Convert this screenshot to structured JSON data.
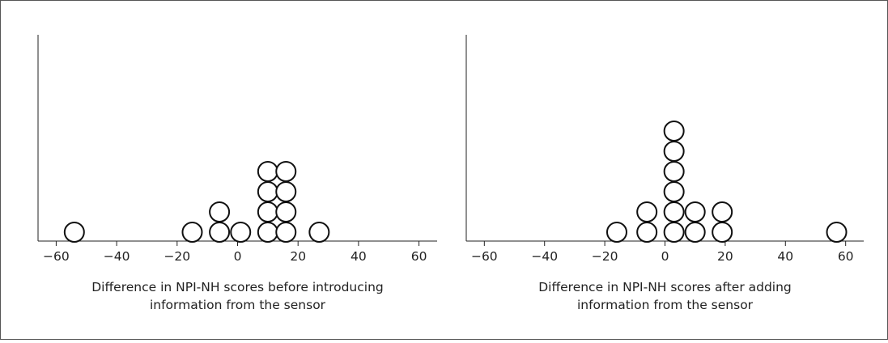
{
  "chart_data": [
    {
      "type": "dot",
      "title": "",
      "xlabel": [
        "Difference in NPI-NH scores before introducing",
        "information from the sensor"
      ],
      "ylabel": "",
      "xlim": [
        -66,
        66
      ],
      "xticks": [
        -60,
        -40,
        -20,
        0,
        20,
        40,
        60
      ],
      "xtick_labels": [
        "−60",
        "−40",
        "−20",
        "0",
        "20",
        "40",
        "60"
      ],
      "points": [
        {
          "x": -54,
          "count": 1
        },
        {
          "x": -15,
          "count": 1
        },
        {
          "x": -6,
          "count": 2
        },
        {
          "x": 1,
          "count": 1
        },
        {
          "x": 10,
          "count": 4
        },
        {
          "x": 16,
          "count": 4
        },
        {
          "x": 27,
          "count": 1
        }
      ]
    },
    {
      "type": "dot",
      "title": "",
      "xlabel": [
        "Difference in NPI-NH scores after adding",
        "information from the sensor"
      ],
      "ylabel": "",
      "xlim": [
        -66,
        66
      ],
      "xticks": [
        -60,
        -40,
        -20,
        0,
        20,
        40,
        60
      ],
      "xtick_labels": [
        "−60",
        "−40",
        "−20",
        "0",
        "20",
        "40",
        "60"
      ],
      "points": [
        {
          "x": -16,
          "count": 1
        },
        {
          "x": -6,
          "count": 2
        },
        {
          "x": 3,
          "count": 6
        },
        {
          "x": 10,
          "count": 2
        },
        {
          "x": 19,
          "count": 2
        },
        {
          "x": 57,
          "count": 1
        }
      ]
    }
  ]
}
